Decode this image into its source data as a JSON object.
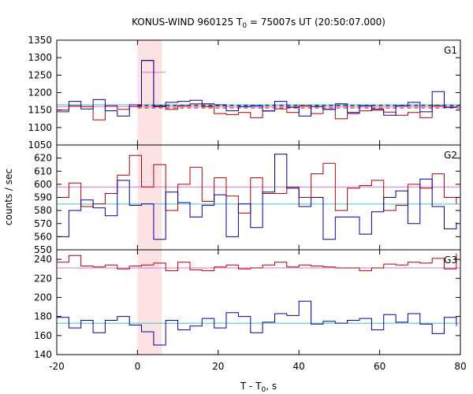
{
  "chart_data": {
    "type": "line",
    "title_main": "KONUS-WIND 960125 T",
    "title_sub": "0",
    "title_rest": " = 75007s UT (20:50:07.000)",
    "xlabel_main": "T - T",
    "xlabel_sub": "0",
    "xlabel_rest": ", s",
    "ylabel": "counts / sec",
    "xlim": [
      -20,
      80
    ],
    "xticks": [
      -20,
      0,
      20,
      40,
      60,
      80
    ],
    "highlight_interval": [
      0,
      6
    ],
    "colors": {
      "series_a": "#b00000",
      "series_b": "#0000a0",
      "level_a": "#e070e0",
      "level_b": "#40c0c8",
      "highlight": "#fde2e4",
      "bg_dash": "#000000"
    },
    "panels": [
      {
        "label": "G1",
        "ylim": [
          1050,
          1350
        ],
        "yticks": [
          1050,
          1100,
          1150,
          1200,
          1250,
          1300,
          1350
        ],
        "ytick_labels": [
          "1050",
          "1100",
          "1150",
          "1200",
          "1250",
          "1300",
          "1350"
        ],
        "level_a": 1160,
        "level_b": 1165,
        "dashed_levels": [
          1163,
          1156
        ],
        "series_a": {
          "x": [
            -20,
            -17,
            -14,
            -11,
            -8,
            -5,
            -2,
            1,
            4,
            7,
            10,
            13,
            16,
            19,
            22,
            25,
            28,
            31,
            34,
            37,
            40,
            43,
            46,
            49,
            52,
            55,
            58,
            61,
            64,
            67,
            70,
            73,
            76,
            79
          ],
          "y": [
            1145,
            1162,
            1160,
            1122,
            1162,
            1152,
            1160,
            1292,
            1162,
            1152,
            1162,
            1168,
            1160,
            1140,
            1137,
            1143,
            1128,
            1147,
            1153,
            1143,
            1162,
            1140,
            1152,
            1125,
            1140,
            1148,
            1153,
            1144,
            1135,
            1143,
            1128,
            1162,
            1158,
            1162
          ]
        },
        "series_b": {
          "x": [
            -20,
            -17,
            -14,
            -11,
            -8,
            -5,
            -2,
            1,
            4,
            7,
            10,
            13,
            16,
            19,
            22,
            25,
            28,
            31,
            34,
            37,
            40,
            43,
            46,
            49,
            52,
            55,
            58,
            61,
            64,
            67,
            70,
            73,
            76,
            79
          ],
          "y": [
            1150,
            1175,
            1153,
            1180,
            1148,
            1133,
            1165,
            1292,
            1160,
            1172,
            1175,
            1178,
            1168,
            1165,
            1148,
            1160,
            1162,
            1148,
            1175,
            1158,
            1133,
            1160,
            1152,
            1168,
            1143,
            1162,
            1150,
            1135,
            1162,
            1172,
            1145,
            1203,
            1158,
            1162
          ]
        },
        "series_c": {
          "x": [
            1,
            4
          ],
          "y": [
            1258,
            1258
          ]
        }
      },
      {
        "label": "G2",
        "ylim": [
          550,
          630
        ],
        "yticks": [
          550,
          560,
          570,
          580,
          590,
          600,
          610,
          620
        ],
        "ytick_labels": [
          "550",
          "560",
          "570",
          "580",
          "590",
          "600",
          "610",
          "620"
        ],
        "level_a": 598,
        "level_b": 585,
        "dashed_levels": [],
        "series_a": {
          "x": [
            -20,
            -17,
            -14,
            -11,
            -8,
            -5,
            -2,
            1,
            4,
            7,
            10,
            13,
            16,
            19,
            22,
            25,
            28,
            31,
            34,
            37,
            40,
            43,
            46,
            49,
            52,
            55,
            58,
            61,
            64,
            67,
            70,
            73,
            76,
            79
          ],
          "y": [
            590,
            601,
            583,
            585,
            593,
            607,
            622,
            598,
            615,
            580,
            600,
            613,
            587,
            605,
            591,
            578,
            605,
            593,
            593,
            598,
            590,
            608,
            616,
            580,
            597,
            599,
            603,
            580,
            584,
            600,
            597,
            608,
            590,
            585
          ]
        },
        "series_b": {
          "x": [
            -20,
            -17,
            -14,
            -11,
            -8,
            -5,
            -2,
            1,
            4,
            7,
            10,
            13,
            16,
            19,
            22,
            25,
            28,
            31,
            34,
            37,
            40,
            43,
            46,
            49,
            52,
            55,
            58,
            61,
            64,
            67,
            70,
            73,
            76,
            79
          ],
          "y": [
            560,
            580,
            588,
            582,
            576,
            603,
            584,
            585,
            558,
            594,
            586,
            575,
            584,
            592,
            560,
            585,
            567,
            594,
            623,
            597,
            583,
            590,
            558,
            575,
            575,
            562,
            579,
            590,
            595,
            570,
            604,
            583,
            566,
            571
          ]
        },
        "series_c": {
          "x": [],
          "y": []
        }
      },
      {
        "label": "G3",
        "ylim": [
          140,
          250
        ],
        "yticks": [
          140,
          160,
          180,
          200,
          220,
          240
        ],
        "ytick_labels": [
          "140",
          "160",
          "180",
          "200",
          "220",
          "240"
        ],
        "level_a": 231,
        "level_b": 173,
        "dashed_levels": [],
        "series_a": {
          "x": [
            -20,
            -17,
            -14,
            -11,
            -8,
            -5,
            -2,
            1,
            4,
            7,
            10,
            13,
            16,
            19,
            22,
            25,
            28,
            31,
            34,
            37,
            40,
            43,
            46,
            49,
            52,
            55,
            58,
            61,
            64,
            67,
            70,
            73,
            76,
            79
          ],
          "y": [
            237,
            244,
            233,
            232,
            234,
            230,
            233,
            234,
            236,
            228,
            237,
            229,
            228,
            232,
            234,
            230,
            231,
            234,
            237,
            232,
            234,
            233,
            232,
            231,
            231,
            228,
            231,
            235,
            234,
            237,
            236,
            241,
            230,
            246
          ]
        },
        "series_b": {
          "x": [
            -20,
            -17,
            -14,
            -11,
            -8,
            -5,
            -2,
            1,
            4,
            7,
            10,
            13,
            16,
            19,
            22,
            25,
            28,
            31,
            34,
            37,
            40,
            43,
            46,
            49,
            52,
            55,
            58,
            61,
            64,
            67,
            70,
            73,
            76,
            79
          ],
          "y": [
            179,
            168,
            176,
            163,
            176,
            180,
            171,
            164,
            150,
            176,
            166,
            170,
            178,
            168,
            184,
            180,
            163,
            174,
            183,
            181,
            196,
            172,
            175,
            173,
            176,
            178,
            166,
            182,
            174,
            183,
            172,
            162,
            179,
            170
          ]
        },
        "series_c": {
          "x": [],
          "y": []
        }
      }
    ]
  }
}
